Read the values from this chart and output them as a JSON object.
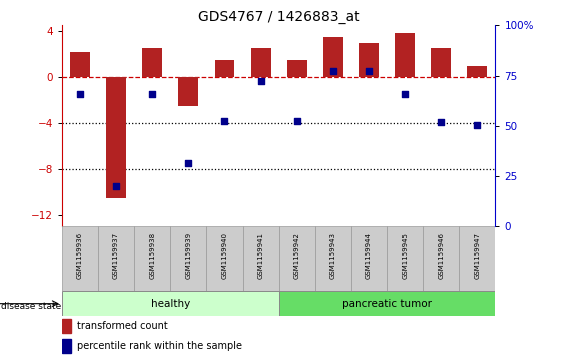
{
  "title": "GDS4767 / 1426883_at",
  "samples": [
    "GSM1159936",
    "GSM1159937",
    "GSM1159938",
    "GSM1159939",
    "GSM1159940",
    "GSM1159941",
    "GSM1159942",
    "GSM1159943",
    "GSM1159944",
    "GSM1159945",
    "GSM1159946",
    "GSM1159947"
  ],
  "red_bars": [
    2.2,
    -10.5,
    2.5,
    -2.5,
    1.5,
    2.5,
    1.5,
    3.5,
    3.0,
    3.8,
    2.5,
    1.0
  ],
  "blue_dots_left": [
    -1.5,
    -9.5,
    -1.5,
    -7.5,
    -3.8,
    -0.3,
    -3.8,
    0.5,
    0.5,
    -1.5,
    -3.9,
    -4.2
  ],
  "ylim_left": [
    -13,
    4.5
  ],
  "ylim_right": [
    0,
    100
  ],
  "yticks_left": [
    4,
    0,
    -4,
    -8,
    -12
  ],
  "yticks_right": [
    100,
    75,
    50,
    25,
    0
  ],
  "healthy_count": 6,
  "tumor_count": 6,
  "healthy_label": "healthy",
  "tumor_label": "pancreatic tumor",
  "disease_state_label": "disease state",
  "legend_red": "transformed count",
  "legend_blue": "percentile rank within the sample",
  "bar_color": "#B22222",
  "dot_color": "#00008B",
  "healthy_color": "#CCFFCC",
  "tumor_color": "#66DD66",
  "hline_color": "#CC0000",
  "dotline_color": "black",
  "tick_area_color": "#CCCCCC",
  "right_axis_color": "#0000CC"
}
